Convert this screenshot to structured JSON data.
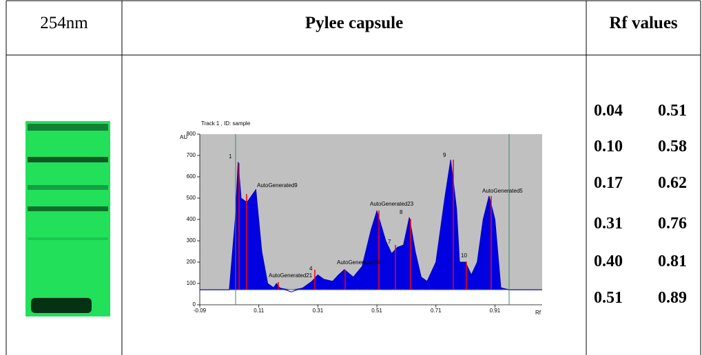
{
  "table": {
    "header": [
      "254nm",
      "Pylee capsule",
      "Rf values"
    ],
    "rf_values": [
      [
        "0.04",
        "0.51"
      ],
      [
        "0.10",
        "0.58"
      ],
      [
        "0.17",
        "0.62"
      ],
      [
        "0.31",
        "0.76"
      ],
      [
        "0.40",
        "0.81"
      ],
      [
        "0.51",
        "0.89"
      ]
    ]
  },
  "densitogram": {
    "title": "Track 1 , ID: sample",
    "y_label": "AU",
    "x_label": "Rf",
    "ylim": [
      0,
      800
    ],
    "yticks": [
      0,
      100,
      200,
      300,
      400,
      500,
      600,
      700,
      800
    ],
    "xlim": [
      -0.09,
      1.07
    ],
    "xticks": [
      -0.09,
      0.11,
      0.31,
      0.51,
      0.71,
      0.91
    ],
    "trace": {
      "x": [
        -0.09,
        0.01,
        0.03,
        0.04,
        0.05,
        0.07,
        0.1,
        0.12,
        0.14,
        0.16,
        0.17,
        0.18,
        0.22,
        0.26,
        0.29,
        0.31,
        0.33,
        0.36,
        0.38,
        0.4,
        0.43,
        0.46,
        0.49,
        0.51,
        0.54,
        0.56,
        0.58,
        0.6,
        0.62,
        0.64,
        0.66,
        0.68,
        0.71,
        0.74,
        0.76,
        0.78,
        0.79,
        0.81,
        0.83,
        0.85,
        0.87,
        0.89,
        0.91,
        0.93,
        0.96,
        1.07
      ],
      "y": [
        70,
        70,
        400,
        670,
        500,
        480,
        540,
        250,
        100,
        80,
        100,
        80,
        60,
        80,
        110,
        140,
        120,
        110,
        140,
        165,
        130,
        180,
        350,
        440,
        300,
        240,
        270,
        280,
        410,
        250,
        130,
        110,
        200,
        500,
        680,
        450,
        200,
        200,
        140,
        200,
        400,
        510,
        400,
        80,
        70,
        70
      ]
    },
    "peak_labels": [
      "1",
      "AutoGenerated9",
      "AutoGenerated21",
      "4",
      "AutoGenerated24",
      "AutoGenerated23",
      "8",
      "7",
      "9",
      "10",
      "AutoGenerated5"
    ]
  }
}
